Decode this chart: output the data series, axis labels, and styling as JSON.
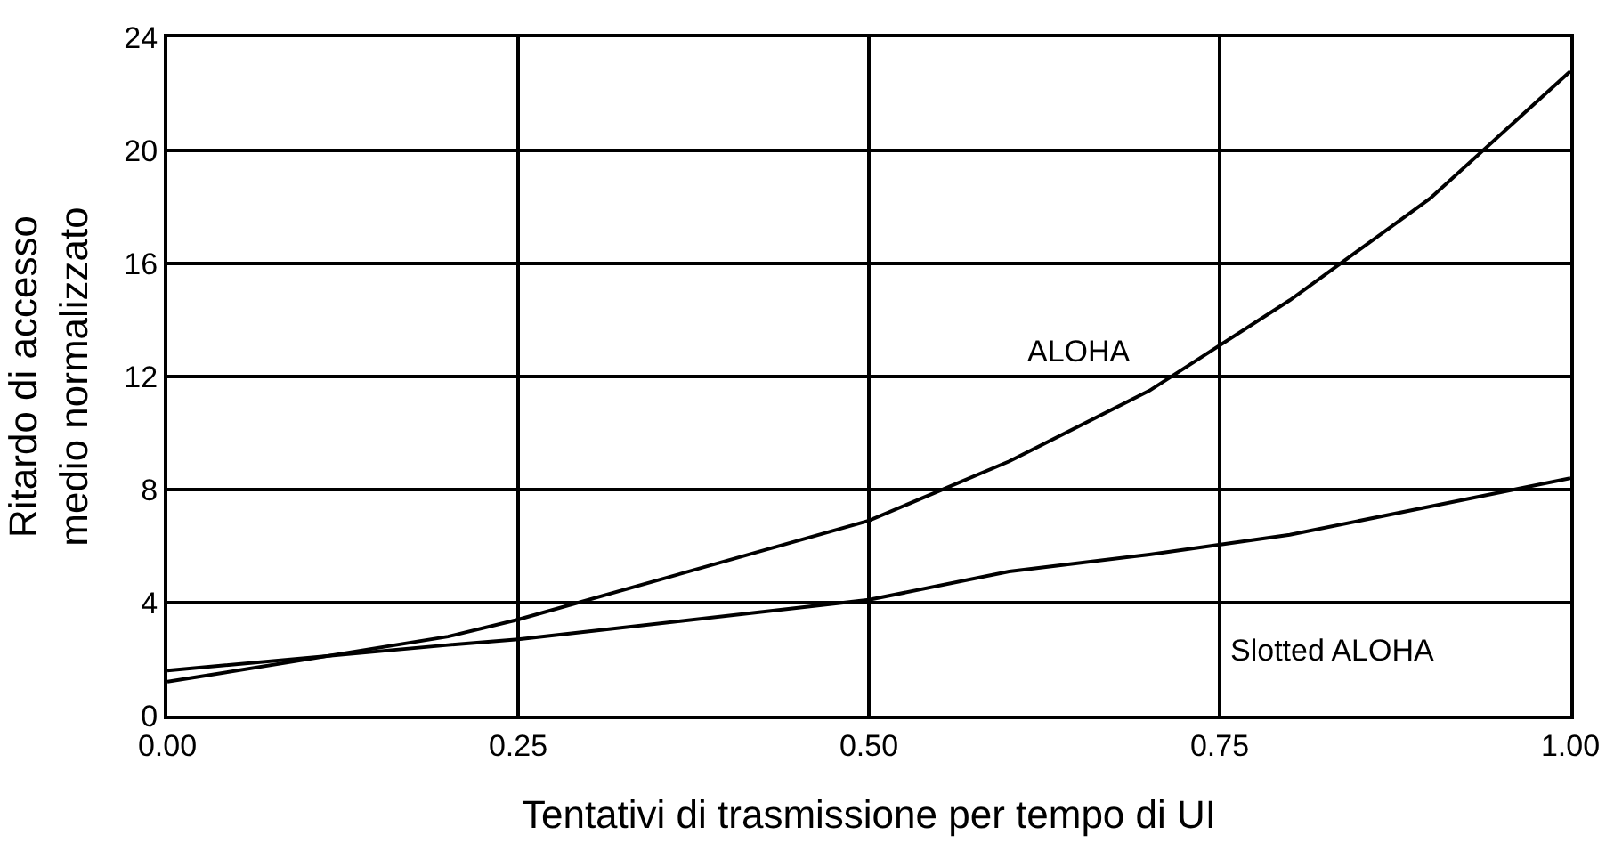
{
  "chart_data": {
    "type": "line",
    "xlabel": "Tentativi di trasmissione per tempo di UI",
    "ylabel": "Ritardo di accesso\nmedio normalizzato",
    "x": [
      0,
      0.2,
      0.25,
      0.5,
      0.6,
      0.7,
      0.8,
      0.9,
      1.0
    ],
    "series": [
      {
        "name": "ALOHA",
        "color": "#000000",
        "values": [
          1.2,
          2.8,
          3.4,
          6.9,
          9.0,
          11.5,
          14.7,
          18.3,
          22.8
        ]
      },
      {
        "name": "Slotted ALOHA",
        "color": "#000000",
        "values": [
          1.6,
          2.5,
          2.7,
          4.1,
          5.1,
          5.7,
          6.4,
          7.4,
          8.4
        ]
      }
    ],
    "xlim": [
      0,
      1.0
    ],
    "ylim": [
      0,
      24
    ],
    "xticks": [
      {
        "value": 0,
        "label": "0.00"
      },
      {
        "value": 0.25,
        "label": "0.25"
      },
      {
        "value": 0.5,
        "label": "0.50"
      },
      {
        "value": 0.75,
        "label": "0.75"
      },
      {
        "value": 1.0,
        "label": "1.00"
      }
    ],
    "yticks": [
      0,
      4,
      8,
      12,
      16,
      20,
      24
    ],
    "grid": true,
    "legend": false,
    "marker": "none",
    "line_style": "solid"
  }
}
